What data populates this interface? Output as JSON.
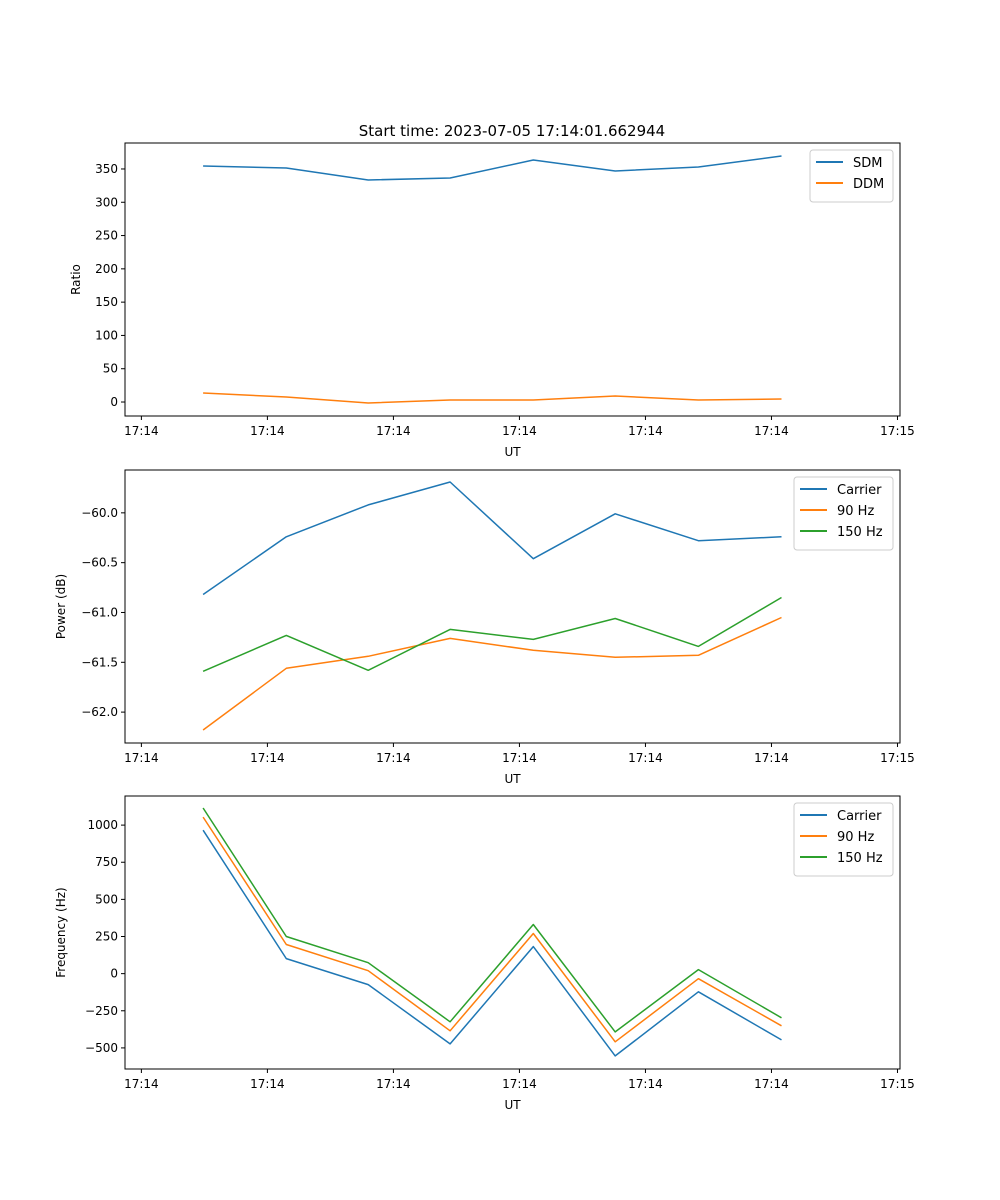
{
  "title": "Start time: 2023-07-05 17:14:01.662944",
  "chart_data": [
    {
      "type": "line",
      "title": "Start time: 2023-07-05 17:14:01.662944",
      "xlabel": "UT",
      "ylabel": "Ratio",
      "x_units": "seconds after 17:14:00",
      "x": [
        4.9,
        11.5,
        18.0,
        24.5,
        31.1,
        37.6,
        44.2,
        50.8
      ],
      "xlim": [
        -1.3,
        60.2
      ],
      "xticks": [
        0,
        10,
        20,
        30,
        40,
        50,
        60
      ],
      "xtick_labels": [
        "17:14",
        "17:14",
        "17:14",
        "17:14",
        "17:14",
        "17:14",
        "17:15"
      ],
      "ylim": [
        -21,
        389
      ],
      "yticks": [
        0,
        50,
        100,
        150,
        200,
        250,
        300,
        350
      ],
      "ytick_labels": [
        "0",
        "50",
        "100",
        "150",
        "200",
        "250",
        "300",
        "350"
      ],
      "legend": "top-right",
      "series": [
        {
          "name": "SDM",
          "color": "#1f77b4",
          "values": [
            354.5,
            351.5,
            333.5,
            336.5,
            363.5,
            347,
            353,
            369.5
          ]
        },
        {
          "name": "DDM",
          "color": "#ff7f0e",
          "values": [
            13.5,
            7.5,
            -1.5,
            3,
            3,
            9,
            3,
            4.5
          ]
        }
      ]
    },
    {
      "type": "line",
      "xlabel": "UT",
      "ylabel": "Power (dB)",
      "x_units": "seconds after 17:14:00",
      "x": [
        4.9,
        11.5,
        18.0,
        24.5,
        31.1,
        37.6,
        44.2,
        50.8
      ],
      "xlim": [
        -1.3,
        60.2
      ],
      "xticks": [
        0,
        10,
        20,
        30,
        40,
        50,
        60
      ],
      "xtick_labels": [
        "17:14",
        "17:14",
        "17:14",
        "17:14",
        "17:14",
        "17:14",
        "17:15"
      ],
      "ylim": [
        -62.31,
        -59.57
      ],
      "yticks": [
        -62.0,
        -61.5,
        -61.0,
        -60.5,
        -60.0
      ],
      "ytick_labels": [
        "−62.0",
        "−61.5",
        "−61.0",
        "−60.5",
        "−60.0"
      ],
      "legend": "top-right",
      "series": [
        {
          "name": "Carrier",
          "color": "#1f77b4",
          "values": [
            -60.82,
            -60.24,
            -59.92,
            -59.69,
            -60.46,
            -60.01,
            -60.28,
            -60.24
          ]
        },
        {
          "name": "90 Hz",
          "color": "#ff7f0e",
          "values": [
            -62.18,
            -61.56,
            -61.44,
            -61.26,
            -61.38,
            -61.45,
            -61.43,
            -61.05
          ]
        },
        {
          "name": "150 Hz",
          "color": "#2ca02c",
          "values": [
            -61.59,
            -61.23,
            -61.58,
            -61.17,
            -61.27,
            -61.06,
            -61.34,
            -60.85
          ]
        }
      ]
    },
    {
      "type": "line",
      "xlabel": "UT",
      "ylabel": "Frequency (Hz)",
      "x_units": "seconds after 17:14:00",
      "x": [
        4.9,
        11.5,
        18.0,
        24.5,
        31.1,
        37.6,
        44.2,
        50.8
      ],
      "xlim": [
        -1.3,
        60.2
      ],
      "xticks": [
        0,
        10,
        20,
        30,
        40,
        50,
        60
      ],
      "xtick_labels": [
        "17:14",
        "17:14",
        "17:14",
        "17:14",
        "17:14",
        "17:14",
        "17:15"
      ],
      "ylim": [
        -642,
        1196
      ],
      "yticks": [
        -500,
        -250,
        0,
        250,
        500,
        750,
        1000
      ],
      "ytick_labels": [
        "−500",
        "−250",
        "0",
        "250",
        "500",
        "750",
        "1000"
      ],
      "legend": "top-right",
      "series": [
        {
          "name": "Carrier",
          "color": "#1f77b4",
          "values": [
            966,
            101,
            -74,
            -473,
            182,
            -554,
            -122,
            -446
          ]
        },
        {
          "name": "90 Hz",
          "color": "#ff7f0e",
          "values": [
            1054,
            196,
            20,
            -385,
            270,
            -459,
            -34,
            -351
          ]
        },
        {
          "name": "150 Hz",
          "color": "#2ca02c",
          "values": [
            1115,
            250,
            74,
            -324,
            331,
            -392,
            27,
            -297
          ]
        }
      ]
    }
  ]
}
